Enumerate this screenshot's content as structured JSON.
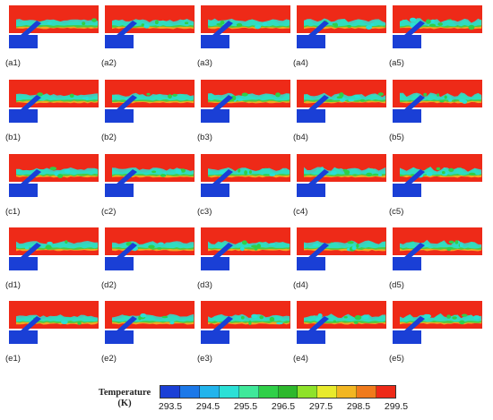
{
  "panels": [
    [
      "(a1)",
      "(a2)",
      "(a3)",
      "(a4)",
      "(a5)"
    ],
    [
      "(b1)",
      "(b2)",
      "(b3)",
      "(b4)",
      "(b5)"
    ],
    [
      "(c1)",
      "(c2)",
      "(c3)",
      "(c4)",
      "(c5)"
    ],
    [
      "(d1)",
      "(d2)",
      "(d3)",
      "(d4)",
      "(d5)"
    ],
    [
      "(e1)",
      "(e2)",
      "(e3)",
      "(e4)",
      "(e5)"
    ]
  ],
  "colorbar": {
    "title_line1": "Temperature",
    "title_line2": "(K)",
    "ticks": [
      "293.5",
      "294.5",
      "295.5",
      "296.5",
      "297.5",
      "298.5",
      "299.5"
    ],
    "colors": [
      "#1a3fd6",
      "#1c78e8",
      "#22b4ec",
      "#2be0d6",
      "#3fe89a",
      "#2fcf48",
      "#2db82c",
      "#8ee22a",
      "#e8ea2c",
      "#f2b622",
      "#f07a1c",
      "#ee2a18"
    ]
  },
  "field_colors": {
    "hot": "#ee2a18",
    "cold": "#1a3fd6",
    "mid": "#2fcf48",
    "warm": "#f2b622",
    "cool": "#2be0d6"
  }
}
